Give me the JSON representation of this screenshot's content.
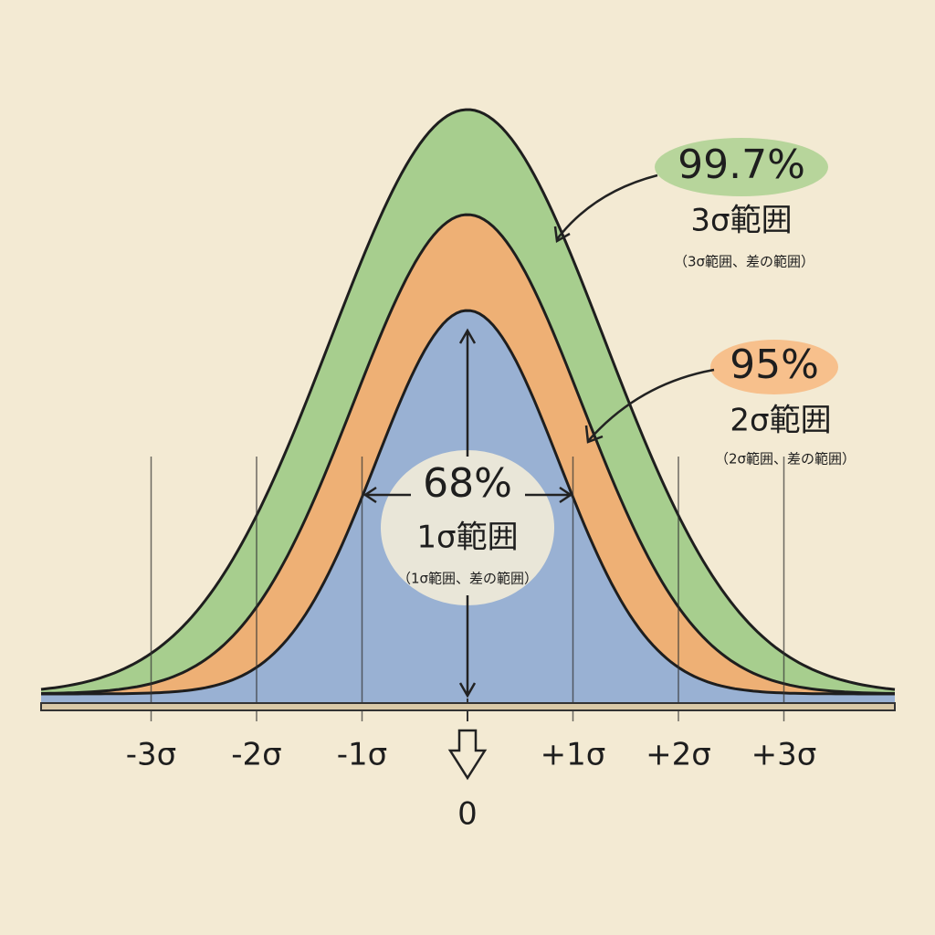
{
  "annotations": [
    {
      "percent": "99.7%",
      "range": "3σ範囲",
      "note": "（3σ範囲、差の範囲）"
    },
    {
      "percent": "95%",
      "range": "2σ範囲",
      "note": "（2σ範囲、差の範囲）"
    },
    {
      "percent": "68%",
      "range": "1σ範囲",
      "note": "（1σ範囲、差の範囲）"
    }
  ],
  "axis": {
    "labels": [
      "-3σ",
      "-2σ",
      "-1σ",
      "+1σ",
      "+2σ",
      "+3σ"
    ],
    "center": "0"
  }
}
